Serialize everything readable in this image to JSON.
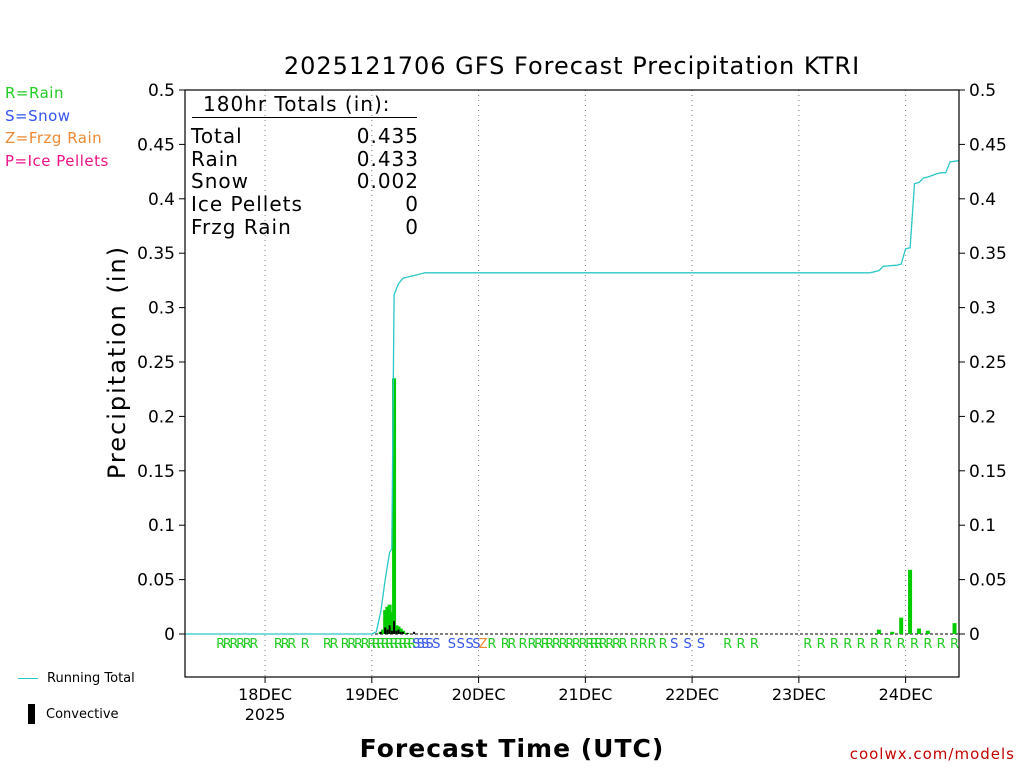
{
  "legend": {
    "rain": {
      "label": "R=Rain",
      "color": "#22cc22"
    },
    "snow": {
      "label": "S=Snow",
      "color": "#3355ee"
    },
    "frzg_rain": {
      "label": "Z=Frzg Rain",
      "color": "#ee8833"
    },
    "ice_pellets": {
      "label": "P=Ice Pellets",
      "color": "#ee1188"
    }
  },
  "bottom_legend": {
    "running_total": "Running Total",
    "convective": "Convective"
  },
  "credit": "coolwx.com/models",
  "totals_box": {
    "title": "180hr Totals (in):",
    "rows": [
      {
        "label": "Total",
        "value": "0.435"
      },
      {
        "label": "Rain",
        "value": "0.433"
      },
      {
        "label": "Snow",
        "value": "0.002"
      },
      {
        "label": "Ice Pellets",
        "value": "0"
      },
      {
        "label": "Frzg Rain",
        "value": "0"
      }
    ]
  },
  "chart_data": {
    "type": "bar",
    "title": "2025121706 GFS Forecast Precipitation KTRI",
    "xlabel": "Forecast Time (UTC)",
    "ylabel": "Precipitation (in)",
    "ylim": [
      0,
      0.5
    ],
    "y_ticks": [
      0,
      0.05,
      0.1,
      0.15,
      0.2,
      0.25,
      0.3,
      0.35,
      0.4,
      0.45,
      0.5
    ],
    "y_tick_labels": [
      "0",
      "0.05",
      "0.1",
      "0.15",
      "0.2",
      "0.25",
      "0.3",
      "0.35",
      "0.4",
      "0.45",
      "0.5"
    ],
    "xlim_hours": [
      6,
      180
    ],
    "x_ticks": [
      {
        "hour": 24,
        "label": "18DEC",
        "sublabel": "2025"
      },
      {
        "hour": 48,
        "label": "19DEC"
      },
      {
        "hour": 72,
        "label": "20DEC"
      },
      {
        "hour": 96,
        "label": "21DEC"
      },
      {
        "hour": 120,
        "label": "22DEC"
      },
      {
        "hour": 144,
        "label": "23DEC"
      },
      {
        "hour": 168,
        "label": "24DEC"
      }
    ],
    "grid": true,
    "colors": {
      "precip": "#00cc00",
      "convective": "#000000",
      "running_total": "#2cc7c7",
      "frame": "#000000"
    },
    "series": [
      {
        "name": "Precipitation",
        "x_hours": [
          50,
          50.5,
          51,
          51.5,
          52,
          52.5,
          53,
          53.5,
          54,
          54.5,
          55,
          55.5,
          56,
          162,
          165,
          167,
          169,
          171,
          173,
          179
        ],
        "values": [
          0.002,
          0.004,
          0.022,
          0.025,
          0.027,
          0.02,
          0.235,
          0.008,
          0.007,
          0.005,
          0.003,
          0.001,
          0.001,
          0.004,
          0.002,
          0.015,
          0.059,
          0.005,
          0.003,
          0.01
        ]
      },
      {
        "name": "Convective",
        "x_hours": [
          50,
          51,
          51.5,
          52,
          52.5,
          53,
          53.5,
          54,
          54.5,
          55,
          56,
          57.5
        ],
        "values": [
          0.002,
          0.006,
          0.004,
          0.008,
          0.003,
          0.012,
          0.003,
          0.004,
          0.002,
          0.002,
          0.001,
          0.002
        ]
      },
      {
        "name": "Running Total",
        "x_hours": [
          6,
          48,
          49,
          50,
          51,
          52,
          52.5,
          53,
          54,
          55,
          56,
          57,
          58,
          60,
          160,
          162,
          163,
          166,
          167,
          168,
          169,
          170,
          171,
          172,
          173,
          175,
          176,
          177,
          178,
          180
        ],
        "values": [
          0,
          0,
          0.002,
          0.02,
          0.05,
          0.075,
          0.078,
          0.312,
          0.322,
          0.327,
          0.328,
          0.329,
          0.33,
          0.332,
          0.332,
          0.334,
          0.338,
          0.339,
          0.34,
          0.354,
          0.355,
          0.414,
          0.415,
          0.419,
          0.42,
          0.423,
          0.424,
          0.424,
          0.434,
          0.435
        ]
      }
    ],
    "ptype_markers": [
      {
        "hour": 14,
        "type": "R"
      },
      {
        "hour": 15.5,
        "type": "R"
      },
      {
        "hour": 17,
        "type": "R"
      },
      {
        "hour": 18.5,
        "type": "R"
      },
      {
        "hour": 20,
        "type": "R"
      },
      {
        "hour": 21.5,
        "type": "R"
      },
      {
        "hour": 27,
        "type": "R"
      },
      {
        "hour": 28.5,
        "type": "R"
      },
      {
        "hour": 30,
        "type": "R"
      },
      {
        "hour": 33,
        "type": "R"
      },
      {
        "hour": 38,
        "type": "R"
      },
      {
        "hour": 39.5,
        "type": "R"
      },
      {
        "hour": 42,
        "type": "R"
      },
      {
        "hour": 43.5,
        "type": "R"
      },
      {
        "hour": 45,
        "type": "R"
      },
      {
        "hour": 46.5,
        "type": "R"
      },
      {
        "hour": 48,
        "type": "R"
      },
      {
        "hour": 49,
        "type": "R"
      },
      {
        "hour": 50,
        "type": "R"
      },
      {
        "hour": 51,
        "type": "R"
      },
      {
        "hour": 52,
        "type": "R"
      },
      {
        "hour": 53,
        "type": "R"
      },
      {
        "hour": 54,
        "type": "R"
      },
      {
        "hour": 55,
        "type": "R"
      },
      {
        "hour": 56,
        "type": "R"
      },
      {
        "hour": 57,
        "type": "R"
      },
      {
        "hour": 58,
        "type": "S"
      },
      {
        "hour": 59,
        "type": "S"
      },
      {
        "hour": 60,
        "type": "S"
      },
      {
        "hour": 61,
        "type": "S"
      },
      {
        "hour": 62.5,
        "type": "S"
      },
      {
        "hour": 66,
        "type": "S"
      },
      {
        "hour": 68,
        "type": "S"
      },
      {
        "hour": 70,
        "type": "S"
      },
      {
        "hour": 71.5,
        "type": "S"
      },
      {
        "hour": 73,
        "type": "Z"
      },
      {
        "hour": 75,
        "type": "R"
      },
      {
        "hour": 78,
        "type": "R"
      },
      {
        "hour": 79.5,
        "type": "R"
      },
      {
        "hour": 82,
        "type": "R"
      },
      {
        "hour": 84,
        "type": "R"
      },
      {
        "hour": 85.5,
        "type": "R"
      },
      {
        "hour": 87,
        "type": "R"
      },
      {
        "hour": 88,
        "type": "R"
      },
      {
        "hour": 89.5,
        "type": "R"
      },
      {
        "hour": 91,
        "type": "R"
      },
      {
        "hour": 92.5,
        "type": "R"
      },
      {
        "hour": 94,
        "type": "R"
      },
      {
        "hour": 95.5,
        "type": "R"
      },
      {
        "hour": 97,
        "type": "R"
      },
      {
        "hour": 98,
        "type": "R"
      },
      {
        "hour": 99,
        "type": "R"
      },
      {
        "hour": 100,
        "type": "R"
      },
      {
        "hour": 101.5,
        "type": "R"
      },
      {
        "hour": 103,
        "type": "R"
      },
      {
        "hour": 104.5,
        "type": "R"
      },
      {
        "hour": 107,
        "type": "R"
      },
      {
        "hour": 109,
        "type": "R"
      },
      {
        "hour": 111,
        "type": "R"
      },
      {
        "hour": 113.5,
        "type": "R"
      },
      {
        "hour": 116,
        "type": "S"
      },
      {
        "hour": 119,
        "type": "S"
      },
      {
        "hour": 122,
        "type": "S"
      },
      {
        "hour": 128,
        "type": "R"
      },
      {
        "hour": 131,
        "type": "R"
      },
      {
        "hour": 134,
        "type": "R"
      },
      {
        "hour": 146,
        "type": "R"
      },
      {
        "hour": 149,
        "type": "R"
      },
      {
        "hour": 152,
        "type": "R"
      },
      {
        "hour": 155,
        "type": "R"
      },
      {
        "hour": 158,
        "type": "R"
      },
      {
        "hour": 161,
        "type": "R"
      },
      {
        "hour": 164,
        "type": "R"
      },
      {
        "hour": 167,
        "type": "R"
      },
      {
        "hour": 170,
        "type": "R"
      },
      {
        "hour": 173,
        "type": "R"
      },
      {
        "hour": 176,
        "type": "R"
      },
      {
        "hour": 179,
        "type": "R"
      }
    ]
  }
}
